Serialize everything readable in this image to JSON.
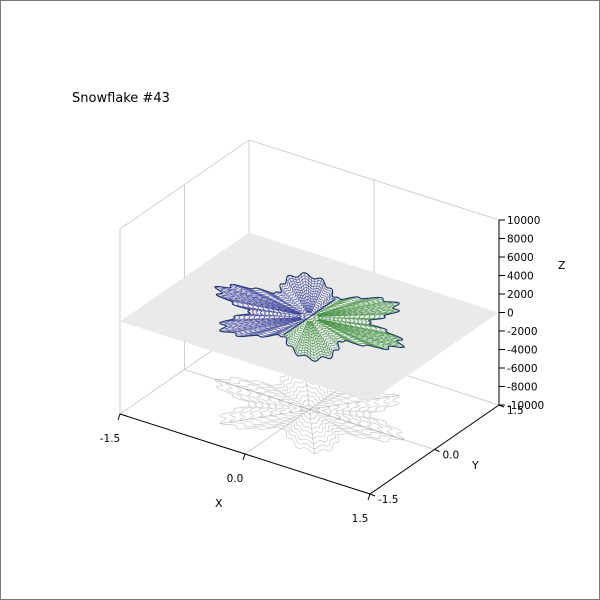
{
  "chart_data": {
    "type": "3d-contour",
    "title": "Snowflake #43",
    "xlabel": "X",
    "ylabel": "Y",
    "zlabel": "Z",
    "xlim": [
      -1.5,
      1.5
    ],
    "ylim": [
      -1.5,
      1.5
    ],
    "zlim": [
      -10000,
      10000
    ],
    "x_ticks": [
      "-1.5",
      "0.0",
      "1.5"
    ],
    "y_ticks": [
      "-1.5",
      "0.0",
      "1.5"
    ],
    "z_ticks": [
      "-10000",
      "-8000",
      "-6000",
      "-4000",
      "-2000",
      "0",
      "2000",
      "4000",
      "6000",
      "8000",
      "10000"
    ],
    "grid": true,
    "shape": "six-armed snowflake of contour lines lying in the z = 0 plane",
    "colors": {
      "left_half": "#3b3f9a",
      "right_half": "#3d8f3a",
      "outline": "#1f3a6e",
      "plane": "#e8e8e8",
      "shadow": "#a8a8a8"
    },
    "projection_shadow": true
  }
}
